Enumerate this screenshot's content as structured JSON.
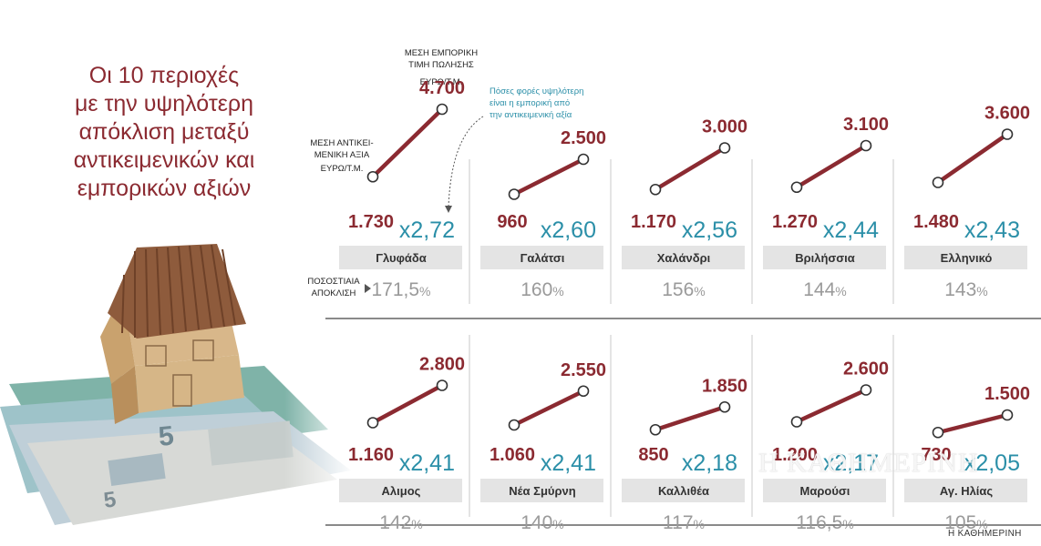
{
  "title": "Οι 10 περιοχές\nμε την υψηλότερη\nαπόκλιση μεταξύ\nαντικειμενικών και\nεμπορικών αξιών",
  "watermark": "Η ΚΑΘΗΜΕΡΙΝΗ",
  "source": "Η ΚΑΘΗΜΕΡΙΝΗ",
  "legend": {
    "market_label_1": "ΜΕΣΗ ΕΜΠΟΡΙΚΗ",
    "market_label_2": "ΤΙΜΗ ΠΩΛΗΣΗΣ",
    "market_unit": "ΕΥΡΩ/Τ.Μ.",
    "objective_label_1": "ΜΕΣΗ ΑΝΤΙΚΕΙ-",
    "objective_label_2": "ΜΕΝΙΚΗ ΑΞΙΑ",
    "objective_unit": "ΕΥΡΩ/Τ.Μ.",
    "ratio_note_1": "Πόσες φορές υψηλότερη",
    "ratio_note_2": "είναι η εμπορική από",
    "ratio_note_3": "την αντικειμενική αξία",
    "pct_label_1": "ΠΟΣΟΣΤΙΑΙΑ",
    "pct_label_2": "ΑΠΟΚΛΙΣΗ"
  },
  "colors": {
    "accent": "#8b2a31",
    "ratio": "#2b8fa8",
    "category_bg": "#e4e4e4",
    "pct": "#9a9a9a"
  },
  "chart_data": {
    "type": "line",
    "value_unit": "ΕΥΡΩ/Τ.Μ.",
    "items": [
      {
        "name": "Γλυφάδα",
        "objective": 1730,
        "market": 4700,
        "objective_label": "1.730",
        "market_label": "4.700",
        "ratio": "x2,72",
        "pct_value": "171,5",
        "pct_unit": "%"
      },
      {
        "name": "Γαλάτσι",
        "objective": 960,
        "market": 2500,
        "objective_label": "960",
        "market_label": "2.500",
        "ratio": "x2,60",
        "pct_value": "160",
        "pct_unit": "%"
      },
      {
        "name": "Χαλάνδρι",
        "objective": 1170,
        "market": 3000,
        "objective_label": "1.170",
        "market_label": "3.000",
        "ratio": "x2,56",
        "pct_value": "156",
        "pct_unit": "%"
      },
      {
        "name": "Βριλήσσια",
        "objective": 1270,
        "market": 3100,
        "objective_label": "1.270",
        "market_label": "3.100",
        "ratio": "x2,44",
        "pct_value": "144",
        "pct_unit": "%"
      },
      {
        "name": "Ελληνικό",
        "objective": 1480,
        "market": 3600,
        "objective_label": "1.480",
        "market_label": "3.600",
        "ratio": "x2,43",
        "pct_value": "143",
        "pct_unit": "%"
      },
      {
        "name": "Αλιμος",
        "objective": 1160,
        "market": 2800,
        "objective_label": "1.160",
        "market_label": "2.800",
        "ratio": "x2,41",
        "pct_value": "142",
        "pct_unit": "%"
      },
      {
        "name": "Νέα Σμύρνη",
        "objective": 1060,
        "market": 2550,
        "objective_label": "1.060",
        "market_label": "2.550",
        "ratio": "x2,41",
        "pct_value": "140",
        "pct_unit": "%"
      },
      {
        "name": "Καλλιθέα",
        "objective": 850,
        "market": 1850,
        "objective_label": "850",
        "market_label": "1.850",
        "ratio": "x2,18",
        "pct_value": "117",
        "pct_unit": "%"
      },
      {
        "name": "Μαρούσι",
        "objective": 1200,
        "market": 2600,
        "objective_label": "1.200",
        "market_label": "2.600",
        "ratio": "x2,17",
        "pct_value": "116,5",
        "pct_unit": "%"
      },
      {
        "name": "Αγ. Ηλίας",
        "objective": 730,
        "market": 1500,
        "objective_label": "730",
        "market_label": "1.500",
        "ratio": "x2,05",
        "pct_value": "105",
        "pct_unit": "%"
      }
    ]
  }
}
